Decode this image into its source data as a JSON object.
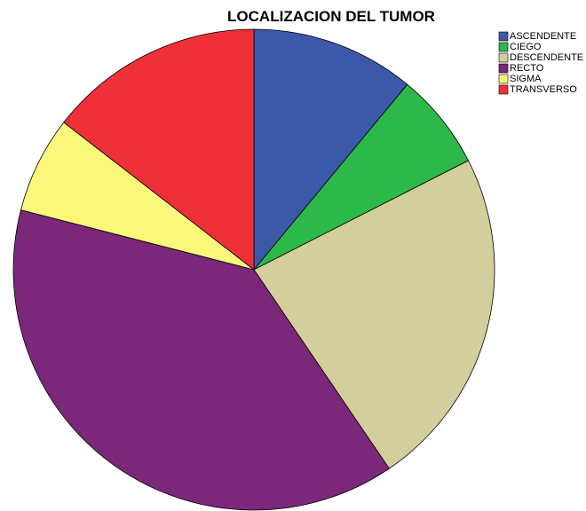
{
  "chart_data": {
    "type": "pie",
    "title": "LOCALIZACION DEL TUMOR",
    "categories": [
      "ASCENDENTE",
      "CIEGO",
      "DESCENDENTE",
      "RECTO",
      "SIGMA",
      "TRANSVERSO"
    ],
    "values": [
      11,
      6.5,
      23,
      38.5,
      6.5,
      14.5
    ],
    "colors": [
      "#3c58a8",
      "#2db84a",
      "#d3cf9c",
      "#7b277a",
      "#fbf77a",
      "#f03039"
    ],
    "legend": "upper right"
  }
}
